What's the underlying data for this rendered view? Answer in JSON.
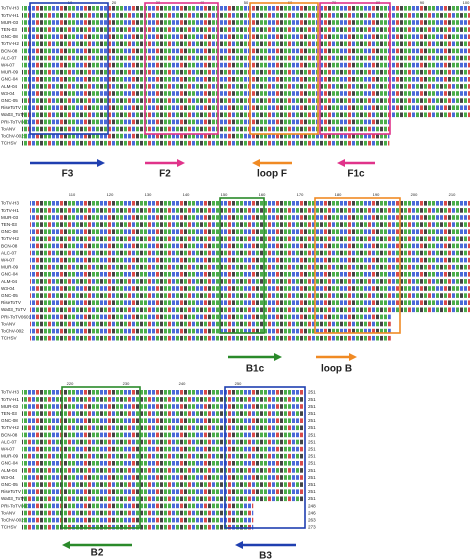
{
  "sequence_names": [
    "ToTV-H3",
    "ToTV-H1",
    "MUR-03",
    "TEN-03",
    "GNC-08",
    "ToTV-H2",
    "BCN-08",
    "ALC-07",
    "W4-07",
    "MUR-09",
    "GNC-04",
    "ALM-04",
    "W3-04",
    "GNC-05",
    "RiseToTV",
    "Wa03_ToTV",
    "PRI-ToTV0601",
    "ToANV",
    "ToChV-002",
    "TCHSV"
  ],
  "blocks": [
    {
      "ruler": [
        "10",
        "20",
        "30",
        "40",
        "50",
        "60",
        "70",
        "80",
        "90",
        "100"
      ],
      "primers": [
        "F3",
        "F2",
        "loop F",
        "F1c"
      ],
      "end_numbers": []
    },
    {
      "ruler": [
        "110",
        "120",
        "130",
        "140",
        "150",
        "160",
        "170",
        "180",
        "190",
        "200",
        "210"
      ],
      "primers": [
        "B1c",
        "loop B"
      ],
      "end_numbers": []
    },
    {
      "ruler": [
        "220",
        "230",
        "240",
        "250"
      ],
      "primers": [
        "B2",
        "B3"
      ],
      "end_numbers": [
        "251",
        "251",
        "251",
        "251",
        "251",
        "251",
        "251",
        "251",
        "251",
        "251",
        "251",
        "251",
        "251",
        "251",
        "251",
        "251",
        "248",
        "246",
        "263",
        "273"
      ]
    }
  ]
}
